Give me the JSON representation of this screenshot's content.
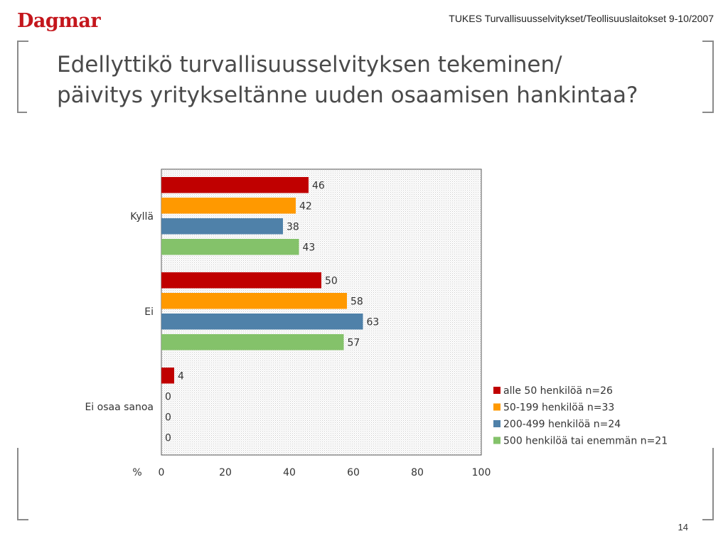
{
  "header": {
    "logo_text": "Dagmar",
    "caption": "TUKES Turvallisuusselvitykset/Teollisuuslaitokset 9-10/2007"
  },
  "title_lines": [
    "Edellyttikö turvallisuusselvityksen tekeminen/",
    "päivitys yritykseltänne uuden osaamisen hankintaa?"
  ],
  "page_number": "14",
  "colors": {
    "series": [
      "#c00000",
      "#ff9900",
      "#4f81a9",
      "#84c26a"
    ]
  },
  "chart_data": {
    "type": "bar",
    "orientation": "horizontal",
    "categories": [
      "Kyllä",
      "Ei",
      "Ei osaa sanoa"
    ],
    "series": [
      {
        "name": "alle 50 henkilöä n=26",
        "values": [
          46,
          50,
          4
        ]
      },
      {
        "name": "50-199 henkilöä n=33",
        "values": [
          42,
          58,
          0
        ]
      },
      {
        "name": "200-499 henkilöä n=24",
        "values": [
          38,
          63,
          0
        ]
      },
      {
        "name": "500 henkilöä tai enemmän n=21",
        "values": [
          43,
          57,
          0
        ]
      }
    ],
    "xlim": [
      0,
      100
    ],
    "x_ticks": [
      0,
      20,
      40,
      60,
      80,
      100
    ],
    "xlabel": "%",
    "data_labels": true,
    "legend": "right"
  }
}
